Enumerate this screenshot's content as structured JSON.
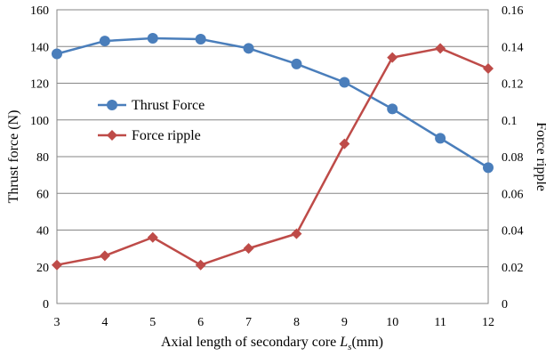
{
  "chart_data": {
    "type": "line",
    "x": [
      3,
      4,
      5,
      6,
      7,
      8,
      9,
      10,
      11,
      12
    ],
    "xlabel_main": "Axial length of secondary core ",
    "xlabel_var": "L",
    "xlabel_sub": "s",
    "xlabel_unit": "(mm)",
    "ylabel_left": "Thrust force (N)",
    "ylabel_right": "Force ripple",
    "xlim": [
      3,
      12
    ],
    "ylim_left": [
      0,
      160
    ],
    "ylim_right": [
      0,
      0.16
    ],
    "left_ticks": [
      "0",
      "20",
      "40",
      "60",
      "80",
      "100",
      "120",
      "140",
      "160"
    ],
    "right_ticks": [
      "0",
      "0.02",
      "0.04",
      "0.06",
      "0.08",
      "0.1",
      "0.12",
      "0.14",
      "0.16"
    ],
    "x_ticks": [
      "3",
      "4",
      "5",
      "6",
      "7",
      "8",
      "9",
      "10",
      "11",
      "12"
    ],
    "grid": "horizontal",
    "legend_position": "left-center",
    "series": [
      {
        "name": "Thrust Force",
        "axis": "left",
        "marker": "circle",
        "color": "#4A7EBB",
        "values": [
          136,
          143,
          144.5,
          144,
          139,
          130.5,
          120.5,
          106,
          90,
          74
        ]
      },
      {
        "name": "Force ripple",
        "axis": "right",
        "marker": "diamond",
        "color": "#BE4B48",
        "values": [
          0.021,
          0.026,
          0.036,
          0.021,
          0.03,
          0.038,
          0.087,
          0.134,
          0.139,
          0.128
        ]
      }
    ]
  }
}
